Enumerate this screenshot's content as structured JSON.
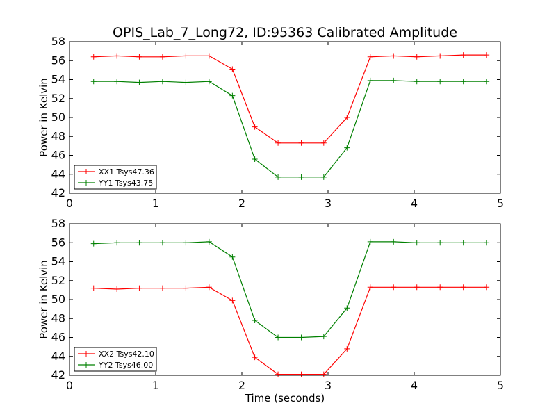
{
  "chart_data": [
    {
      "type": "line",
      "title": "OPIS_Lab_7_Long72, ID:95363 Calibrated Amplitude",
      "xlabel": "",
      "ylabel": "Power in Kelvin",
      "xlim": [
        0,
        5
      ],
      "ylim": [
        42,
        58
      ],
      "xticks": [
        "0",
        "1",
        "2",
        "3",
        "4",
        "5"
      ],
      "yticks": [
        "42",
        "44",
        "46",
        "48",
        "50",
        "52",
        "54",
        "56",
        "58"
      ],
      "grid": false,
      "legend_position": "lower-left",
      "x": [
        0.28,
        0.55,
        0.81,
        1.08,
        1.35,
        1.62,
        1.89,
        2.15,
        2.42,
        2.69,
        2.95,
        3.22,
        3.49,
        3.76,
        4.03,
        4.3,
        4.57,
        4.84
      ],
      "series": [
        {
          "name": "XX1 Tsys47.36",
          "color": "#ff0000",
          "values": [
            56.4,
            56.5,
            56.4,
            56.4,
            56.5,
            56.5,
            55.1,
            49.0,
            47.3,
            47.3,
            47.3,
            50.0,
            56.4,
            56.5,
            56.4,
            56.5,
            56.6,
            56.6
          ]
        },
        {
          "name": "YY1 Tsys43.75",
          "color": "#008000",
          "values": [
            53.8,
            53.8,
            53.7,
            53.8,
            53.7,
            53.8,
            52.3,
            45.6,
            43.7,
            43.7,
            43.7,
            46.8,
            53.9,
            53.9,
            53.8,
            53.8,
            53.8,
            53.8
          ]
        }
      ]
    },
    {
      "type": "line",
      "title": "",
      "xlabel": "Time (seconds)",
      "ylabel": "Power in Kelvin",
      "xlim": [
        0,
        5
      ],
      "ylim": [
        42,
        58
      ],
      "xticks": [
        "0",
        "1",
        "2",
        "3",
        "4",
        "5"
      ],
      "yticks": [
        "42",
        "44",
        "46",
        "48",
        "50",
        "52",
        "54",
        "56",
        "58"
      ],
      "grid": false,
      "legend_position": "lower-left",
      "x": [
        0.28,
        0.55,
        0.81,
        1.08,
        1.35,
        1.62,
        1.89,
        2.15,
        2.42,
        2.69,
        2.95,
        3.22,
        3.49,
        3.76,
        4.03,
        4.3,
        4.57,
        4.84
      ],
      "series": [
        {
          "name": "XX2 Tsys42.10",
          "color": "#ff0000",
          "values": [
            51.2,
            51.1,
            51.2,
            51.2,
            51.2,
            51.3,
            49.9,
            43.9,
            42.1,
            42.1,
            42.1,
            44.8,
            51.3,
            51.3,
            51.3,
            51.3,
            51.3,
            51.3
          ]
        },
        {
          "name": "YY2 Tsys46.00",
          "color": "#008000",
          "values": [
            55.9,
            56.0,
            56.0,
            56.0,
            56.0,
            56.1,
            54.5,
            47.8,
            46.0,
            46.0,
            46.1,
            49.1,
            56.1,
            56.1,
            56.0,
            56.0,
            56.0,
            56.0
          ]
        }
      ]
    }
  ]
}
